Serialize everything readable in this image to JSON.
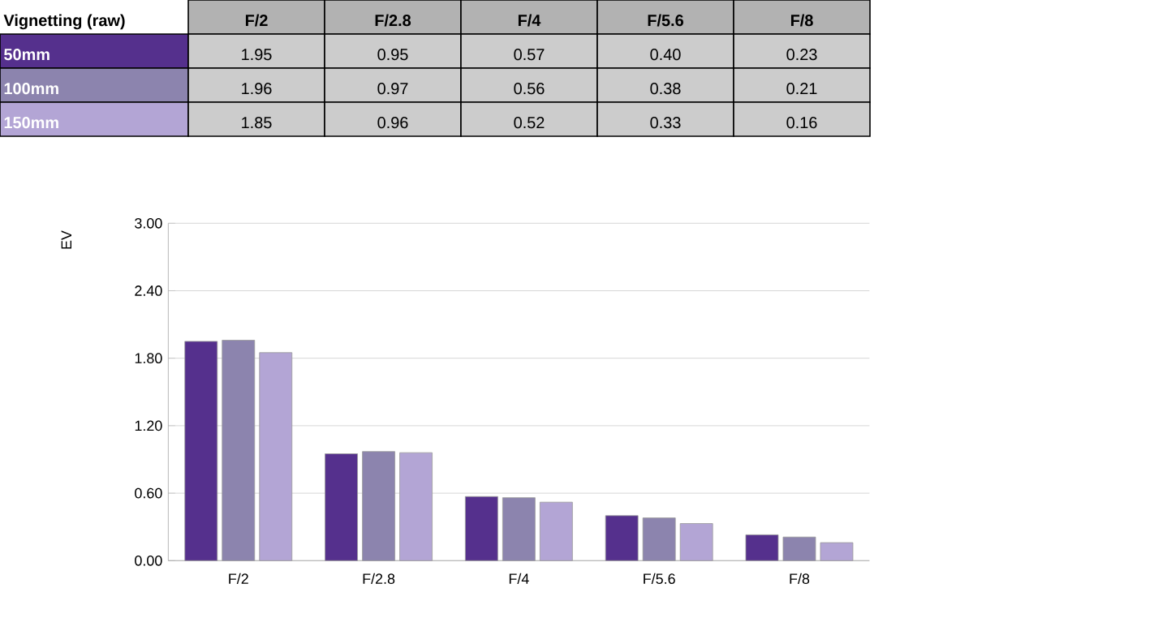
{
  "chart_data": {
    "type": "bar",
    "legend_title": "Vignetting (raw)",
    "ylabel": "EV",
    "categories": [
      "F/2",
      "F/2.8",
      "F/4",
      "F/5.6",
      "F/8"
    ],
    "series": [
      {
        "name": "50mm",
        "color": "#55308d",
        "values": [
          1.95,
          0.95,
          0.57,
          0.4,
          0.23
        ],
        "value_labels": [
          "1.95",
          "0.95",
          "0.57",
          "0.40",
          "0.23"
        ]
      },
      {
        "name": "100mm",
        "color": "#8c84ae",
        "values": [
          1.96,
          0.97,
          0.56,
          0.38,
          0.21
        ],
        "value_labels": [
          "1.96",
          "0.97",
          "0.56",
          "0.38",
          "0.21"
        ]
      },
      {
        "name": "150mm",
        "color": "#b3a5d5",
        "values": [
          1.85,
          0.96,
          0.52,
          0.33,
          0.16
        ],
        "value_labels": [
          "1.85",
          "0.96",
          "0.52",
          "0.33",
          "0.16"
        ]
      }
    ],
    "ylim": [
      0,
      3
    ],
    "yticks": [
      {
        "value": 0,
        "label": "0.00"
      },
      {
        "value": 0.6,
        "label": "0.60"
      },
      {
        "value": 1.2,
        "label": "1.20"
      },
      {
        "value": 1.8,
        "label": "1.80"
      },
      {
        "value": 2.4,
        "label": "2.40"
      },
      {
        "value": 3,
        "label": "3.00"
      }
    ],
    "grid": "y"
  }
}
